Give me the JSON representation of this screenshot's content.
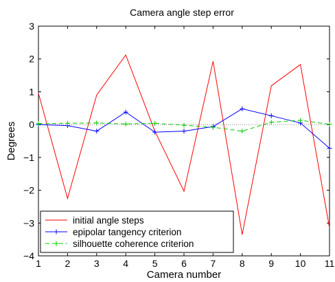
{
  "chart_data": {
    "type": "line",
    "title": "Camera angle step error",
    "xlabel": "Camera number",
    "ylabel": "Degrees",
    "xlim": [
      1,
      11
    ],
    "ylim": [
      -4,
      3
    ],
    "xticks": [
      "1",
      "2",
      "3",
      "4",
      "5",
      "6",
      "7",
      "8",
      "9",
      "10",
      "11"
    ],
    "yticks": [
      "3",
      "2",
      "1",
      "0",
      "−1",
      "−2",
      "−3",
      "−4"
    ],
    "grid": false,
    "zero_reference_line": true,
    "legend_position": "bottom-left",
    "x": [
      1,
      2,
      3,
      4,
      5,
      6,
      7,
      8,
      9,
      10,
      11
    ],
    "series": [
      {
        "name": "initial angle steps",
        "color": "#ff0000",
        "line_style": "solid",
        "marker": "none",
        "values": [
          0.95,
          -2.25,
          0.9,
          2.12,
          -0.2,
          -2.03,
          1.93,
          -3.35,
          1.18,
          1.83,
          -3.15
        ]
      },
      {
        "name": "epipolar tangency criterion",
        "color": "#0000ff",
        "line_style": "solid",
        "marker": "plus",
        "values": [
          0.0,
          -0.03,
          -0.2,
          0.38,
          -0.23,
          -0.2,
          -0.06,
          0.48,
          0.27,
          0.05,
          -0.72
        ]
      },
      {
        "name": "silhouette coherence criterion",
        "color": "#00cc00",
        "line_style": "dashed",
        "marker": "plus",
        "values": [
          0.03,
          0.04,
          0.05,
          0.02,
          0.04,
          -0.02,
          -0.08,
          -0.2,
          0.07,
          0.13,
          0.01
        ]
      }
    ]
  }
}
